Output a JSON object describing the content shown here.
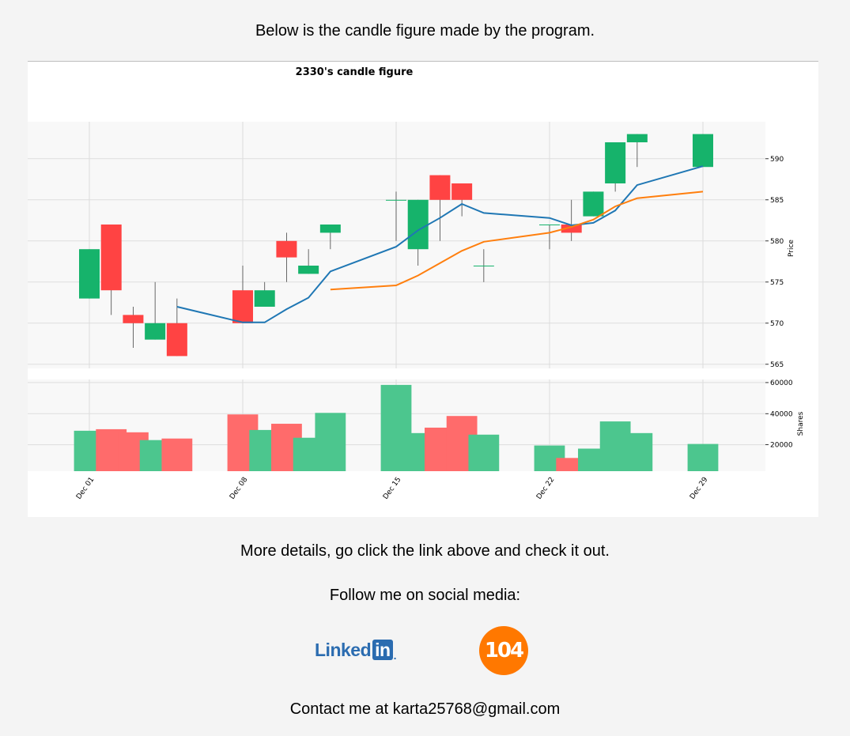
{
  "intro_text": "Below is the candle figure made by the program.",
  "details_text": "More details, go click the link above and check it out.",
  "follow_text": "Follow me on social media:",
  "social": {
    "linkedin_word": "Linked",
    "linkedin_box": "in",
    "linkedin_dot": ".",
    "badge_104": "104",
    "linkedin_icon": "linkedin-logo-icon",
    "badge_icon": "104-logo-icon"
  },
  "contact_text": "Contact me at karta25768@gmail.com",
  "colors": {
    "up": "#16b36b",
    "down": "#ff4343",
    "up_volume": "#4cc68e",
    "down_volume": "#ff6b6b",
    "ma_short": "#1f77b4",
    "ma_long": "#ff7f0e",
    "plot_bg": "#f8f8f8"
  },
  "chart_data": {
    "type": "candlestick",
    "title": "2330's candle figure",
    "ylabel": "Price",
    "volume_label": "Shares",
    "ylim": [
      564.5,
      594.5
    ],
    "volume_ylim": [
      3000,
      62000
    ],
    "price_ticks": [
      565,
      570,
      575,
      580,
      585,
      590
    ],
    "volume_ticks": [
      20000,
      40000,
      60000
    ],
    "xtick_labels": [
      "Dec 01",
      "Dec 08",
      "Dec 15",
      "Dec 22",
      "Dec 29"
    ],
    "xtick_days": [
      1,
      8,
      15,
      22,
      29
    ],
    "grid": true,
    "candles": [
      {
        "day": 1,
        "open": 573,
        "high": 579,
        "low": 573,
        "close": 579,
        "volume": 29000
      },
      {
        "day": 2,
        "open": 582,
        "high": 582,
        "low": 571,
        "close": 574,
        "volume": 30000
      },
      {
        "day": 3,
        "open": 571,
        "high": 572,
        "low": 567,
        "close": 570,
        "volume": 28000
      },
      {
        "day": 4,
        "open": 568,
        "high": 575,
        "low": 568,
        "close": 570,
        "volume": 23000
      },
      {
        "day": 5,
        "open": 570,
        "high": 573,
        "low": 566,
        "close": 566,
        "volume": 24000
      },
      {
        "day": 8,
        "open": 574,
        "high": 577,
        "low": 570,
        "close": 570,
        "volume": 39500
      },
      {
        "day": 9,
        "open": 572,
        "high": 575,
        "low": 572,
        "close": 574,
        "volume": 29500
      },
      {
        "day": 10,
        "open": 580,
        "high": 581,
        "low": 575,
        "close": 578,
        "volume": 33500
      },
      {
        "day": 11,
        "open": 576,
        "high": 579,
        "low": 576,
        "close": 577,
        "volume": 24500
      },
      {
        "day": 12,
        "open": 581,
        "high": 582,
        "low": 579,
        "close": 582,
        "volume": 40500
      },
      {
        "day": 15,
        "open": 585,
        "high": 586,
        "low": 580,
        "close": 585,
        "volume": 58500
      },
      {
        "day": 16,
        "open": 579,
        "high": 585,
        "low": 577,
        "close": 585,
        "volume": 27500
      },
      {
        "day": 17,
        "open": 588,
        "high": 588,
        "low": 580,
        "close": 585,
        "volume": 31000
      },
      {
        "day": 18,
        "open": 587,
        "high": 587,
        "low": 583,
        "close": 585,
        "volume": 38500
      },
      {
        "day": 19,
        "open": 577,
        "high": 579,
        "low": 575,
        "close": 577,
        "volume": 26500
      },
      {
        "day": 22,
        "open": 582,
        "high": 582,
        "low": 579,
        "close": 582,
        "volume": 19500
      },
      {
        "day": 23,
        "open": 582,
        "high": 585,
        "low": 580,
        "close": 581,
        "volume": 11500
      },
      {
        "day": 24,
        "open": 583,
        "high": 586,
        "low": 583,
        "close": 586,
        "volume": 17500
      },
      {
        "day": 25,
        "open": 587,
        "high": 592,
        "low": 586,
        "close": 592,
        "volume": 35000
      },
      {
        "day": 26,
        "open": 592,
        "high": 593,
        "low": 589,
        "close": 593,
        "volume": 27500
      },
      {
        "day": 29,
        "open": 589,
        "high": 593,
        "low": 589,
        "close": 593,
        "volume": 20500
      }
    ],
    "series": [
      {
        "key": "ma_short",
        "points": [
          {
            "day": 5,
            "value": 572
          },
          {
            "day": 8,
            "value": 570.1
          },
          {
            "day": 9,
            "value": 570.1
          },
          {
            "day": 10,
            "value": 571.7
          },
          {
            "day": 11,
            "value": 573.1
          },
          {
            "day": 12,
            "value": 576.3
          },
          {
            "day": 15,
            "value": 579.3
          },
          {
            "day": 16,
            "value": 581.3
          },
          {
            "day": 17,
            "value": 582.8
          },
          {
            "day": 18,
            "value": 584.5
          },
          {
            "day": 19,
            "value": 583.4
          },
          {
            "day": 22,
            "value": 582.8
          },
          {
            "day": 23,
            "value": 581.9
          },
          {
            "day": 24,
            "value": 582.2
          },
          {
            "day": 25,
            "value": 583.7
          },
          {
            "day": 26,
            "value": 586.8
          },
          {
            "day": 29,
            "value": 589.1
          }
        ]
      },
      {
        "key": "ma_long",
        "points": [
          {
            "day": 12,
            "value": 574.1
          },
          {
            "day": 15,
            "value": 574.6
          },
          {
            "day": 16,
            "value": 575.8
          },
          {
            "day": 17,
            "value": 577.3
          },
          {
            "day": 18,
            "value": 578.8
          },
          {
            "day": 19,
            "value": 579.9
          },
          {
            "day": 22,
            "value": 581
          },
          {
            "day": 23,
            "value": 581.7
          },
          {
            "day": 24,
            "value": 582.6
          },
          {
            "day": 25,
            "value": 584.2
          },
          {
            "day": 26,
            "value": 585.2
          },
          {
            "day": 29,
            "value": 586
          }
        ]
      }
    ]
  }
}
